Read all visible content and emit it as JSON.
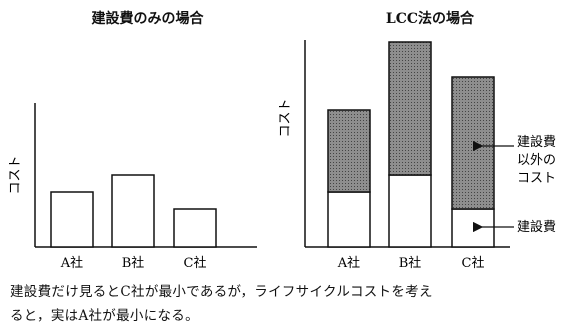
{
  "chart_data": [
    {
      "type": "bar",
      "title": "建設費のみの場合",
      "ylabel": "コスト",
      "categories": [
        "A社",
        "B社",
        "C社"
      ],
      "series": [
        {
          "values": [
            55,
            72,
            38
          ]
        }
      ],
      "ylim": [
        0,
        200
      ],
      "grid": false
    },
    {
      "type": "bar",
      "stacked": true,
      "title": "LCC法の場合",
      "ylabel": "コスト",
      "categories": [
        "A社",
        "B社",
        "C社"
      ],
      "series": [
        {
          "name": "建設費",
          "values": [
            55,
            72,
            38
          ]
        },
        {
          "name": "建設費以外のコスト",
          "values": [
            82,
            133,
            132
          ]
        }
      ],
      "ylim": [
        0,
        200
      ],
      "grid": false,
      "annotations": [
        "建設費以外のコスト",
        "建設費"
      ]
    }
  ],
  "annotation_other_lines": [
    "建設費",
    "以外の",
    "コスト"
  ],
  "caption": {
    "line1": "建設費だけ見るとC社が最小であるが，ライフサイクルコストを考え",
    "line2": "ると，実はA社が最小になる。"
  },
  "colors": {
    "bar_fill": "#ffffff",
    "stack_fill": "#8e8e8e",
    "stroke": "#111111"
  }
}
